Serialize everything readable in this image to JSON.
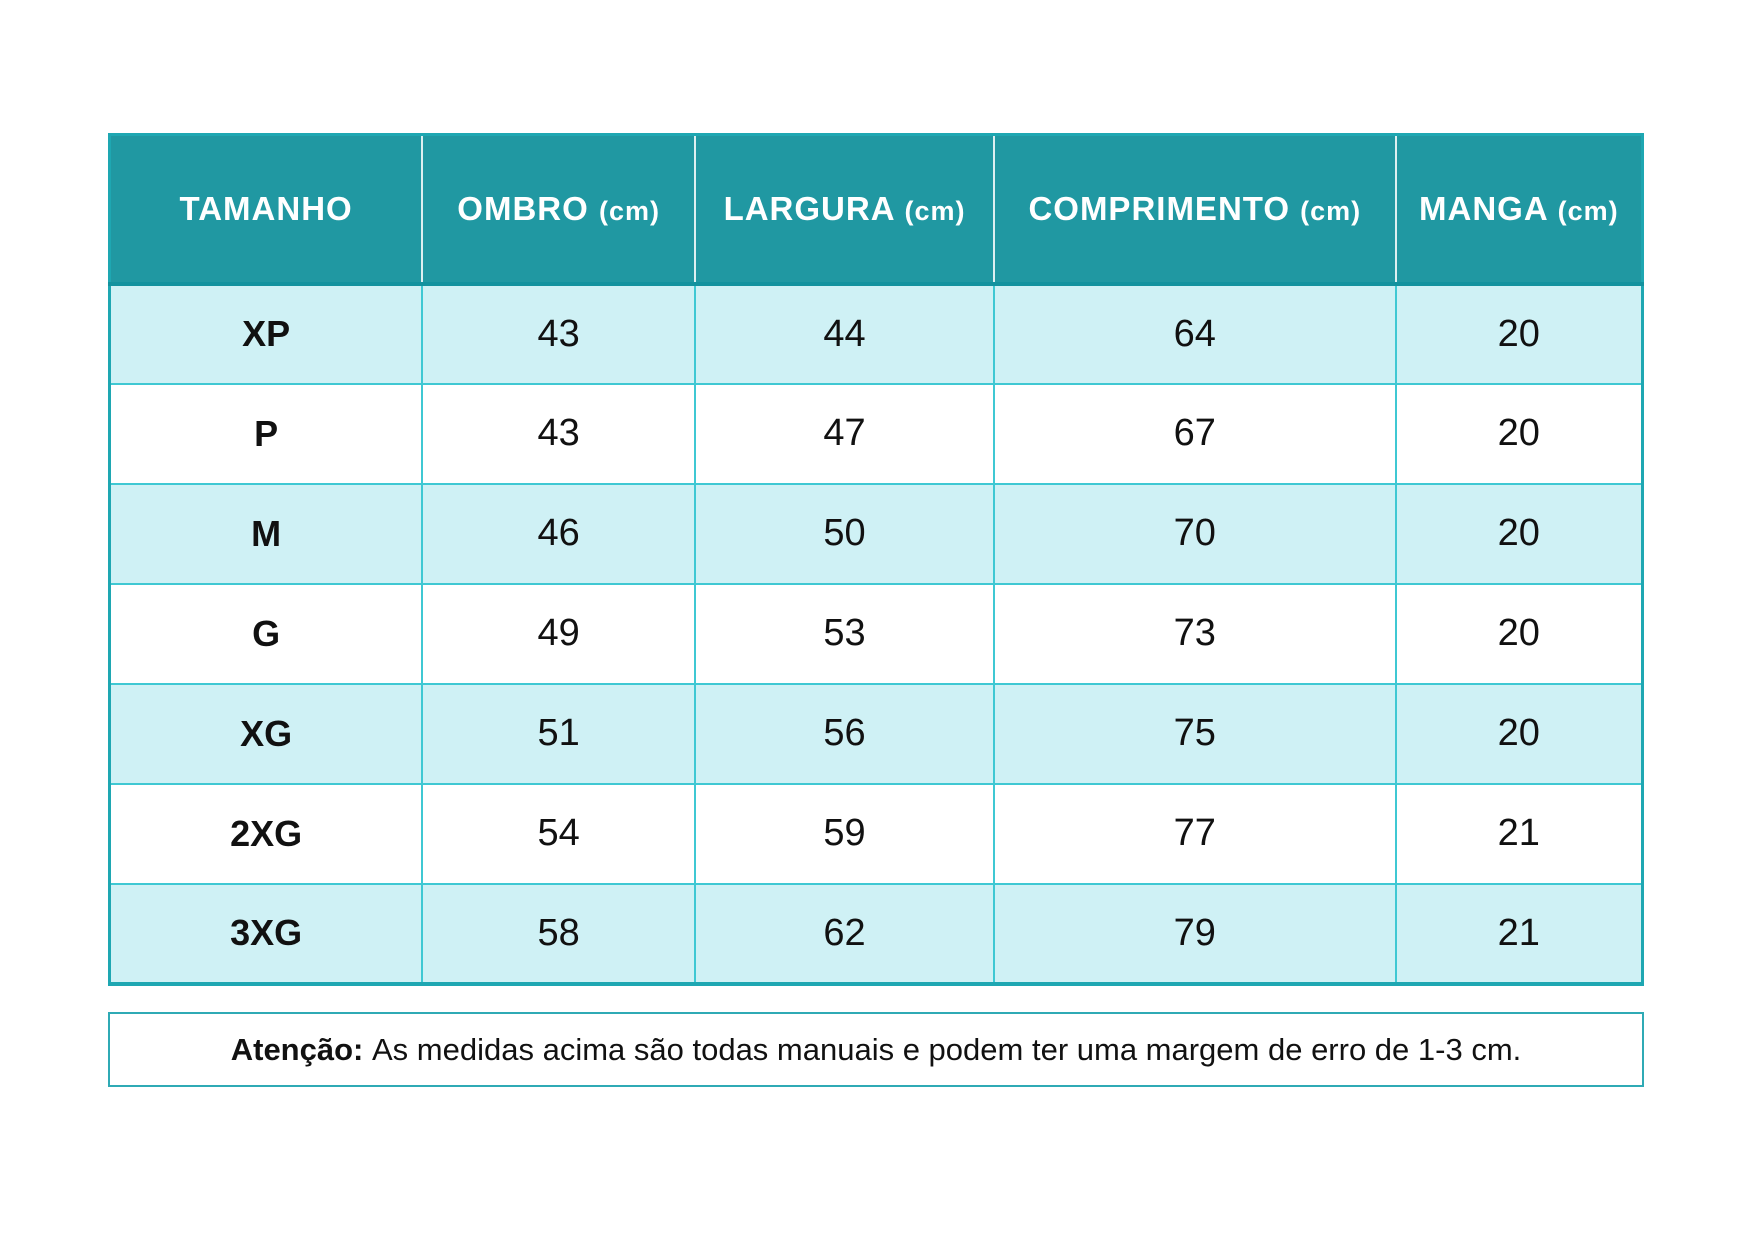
{
  "page": {
    "background": "#FFFFFF"
  },
  "colors": {
    "header_bg": "#2098A2",
    "header_text": "#FFFFFF",
    "row_alt_bg": "#CFF1F5",
    "row_bg": "#FFFFFF",
    "grid_line": "#3FC8D3",
    "frame_line": "#1EA7B2",
    "body_text": "#111111"
  },
  "table": {
    "columns": [
      {
        "key": "tamanho",
        "name": "TAMANHO",
        "unit": ""
      },
      {
        "key": "ombro",
        "name": "OMBRO",
        "unit": "(cm)"
      },
      {
        "key": "largura",
        "name": "LARGURA",
        "unit": "(cm)"
      },
      {
        "key": "comprimento",
        "name": "COMPRIMENTO",
        "unit": "(cm)"
      },
      {
        "key": "manga",
        "name": "MANGA",
        "unit": "(cm)"
      }
    ],
    "rows": [
      {
        "size": "XP",
        "values": [
          "43",
          "44",
          "64",
          "20"
        ]
      },
      {
        "size": "P",
        "values": [
          "43",
          "47",
          "67",
          "20"
        ]
      },
      {
        "size": "M",
        "values": [
          "46",
          "50",
          "70",
          "20"
        ]
      },
      {
        "size": "G",
        "values": [
          "49",
          "53",
          "73",
          "20"
        ]
      },
      {
        "size": "XG",
        "values": [
          "51",
          "56",
          "75",
          "20"
        ]
      },
      {
        "size": "2XG",
        "values": [
          "54",
          "59",
          "77",
          "21"
        ]
      },
      {
        "size": "3XG",
        "values": [
          "58",
          "62",
          "79",
          "21"
        ]
      }
    ]
  },
  "note": {
    "label": "Atenção:",
    "text": "As medidas acima são todas manuais e podem ter uma margem de erro de 1-3 cm."
  },
  "chart_data": {
    "type": "table",
    "title": "Tabela de medidas (size chart)",
    "columns": [
      "TAMANHO",
      "OMBRO (cm)",
      "LARGURA (cm)",
      "COMPRIMENTO (cm)",
      "MANGA (cm)"
    ],
    "rows": [
      [
        "XP",
        43,
        44,
        64,
        20
      ],
      [
        "P",
        43,
        47,
        67,
        20
      ],
      [
        "M",
        46,
        50,
        70,
        20
      ],
      [
        "G",
        49,
        53,
        73,
        20
      ],
      [
        "XG",
        51,
        56,
        75,
        20
      ],
      [
        "2XG",
        54,
        59,
        77,
        21
      ],
      [
        "3XG",
        58,
        62,
        79,
        21
      ]
    ],
    "note": "Atenção: As medidas acima são todas manuais e podem ter uma margem de erro de 1-3 cm."
  }
}
